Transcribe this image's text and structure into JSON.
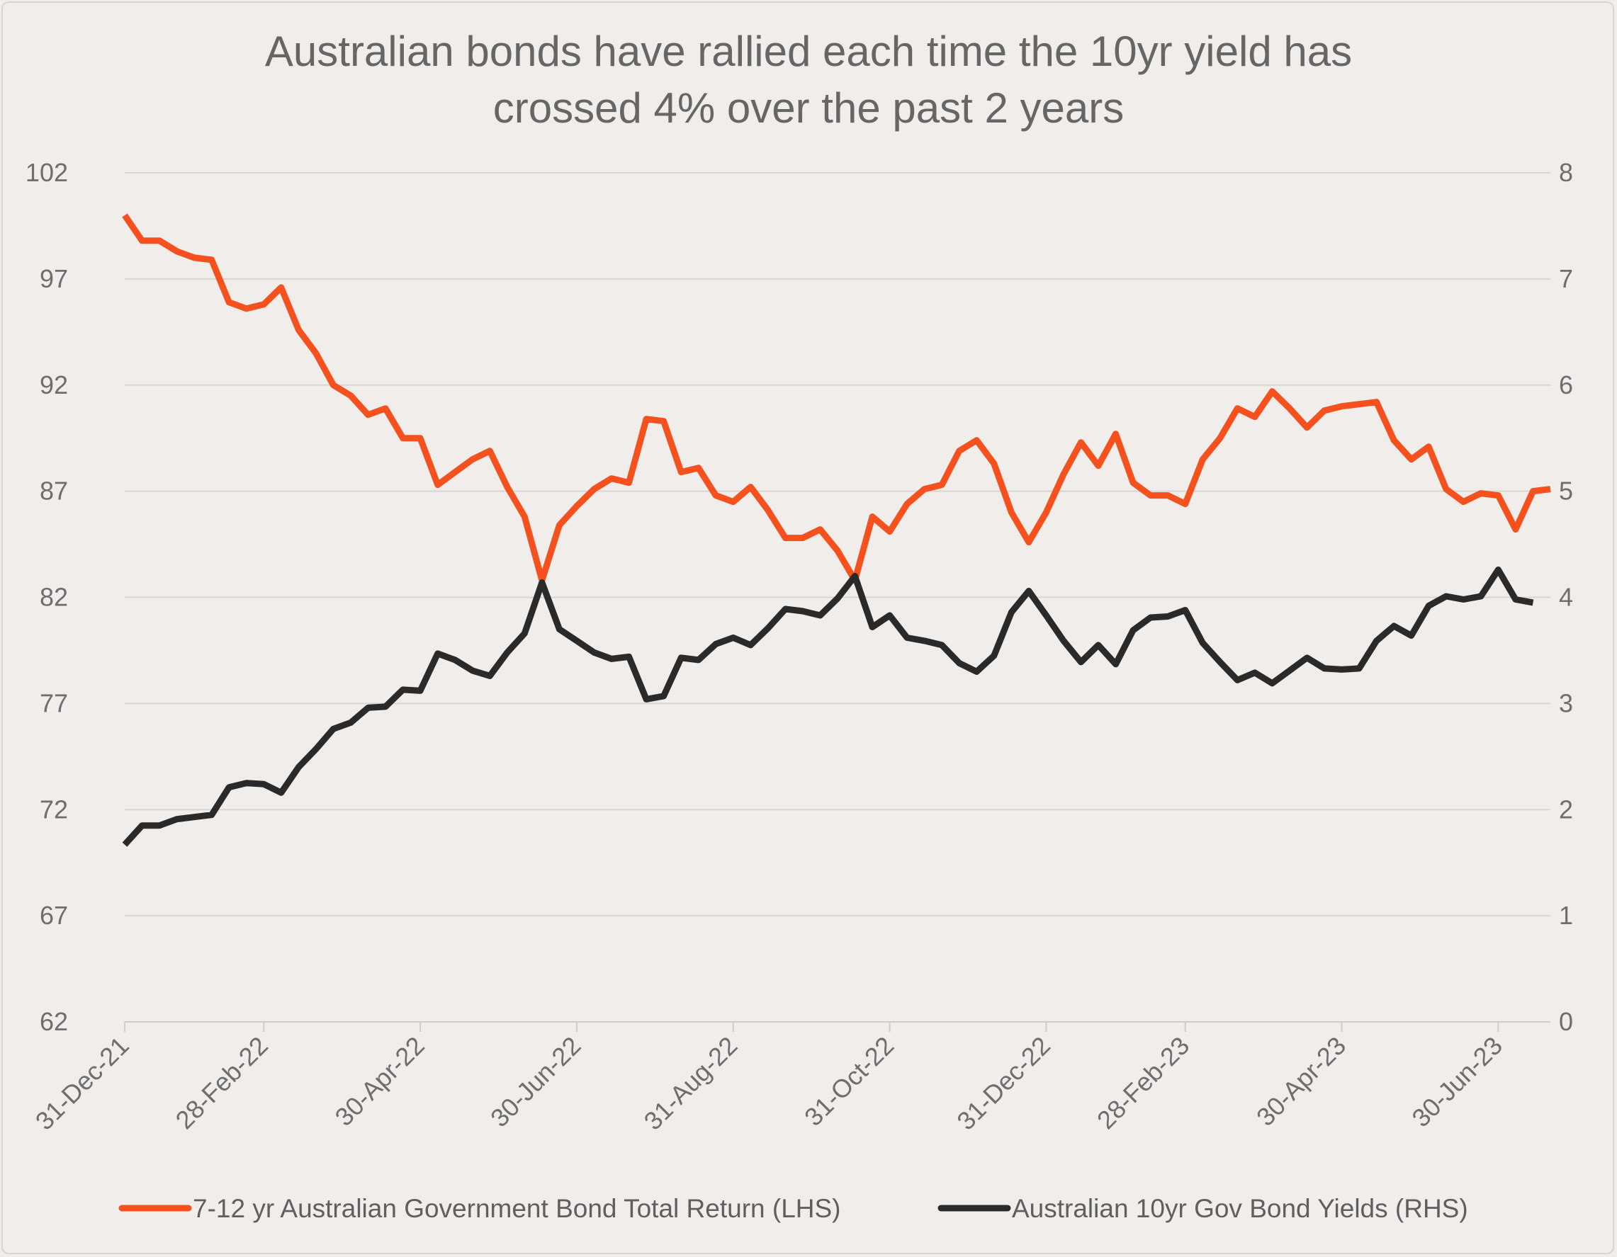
{
  "colors": {
    "background": "#f0edea",
    "bond_return": "#f4511e",
    "bond_yield": "#2a2a2a",
    "text": "#666666",
    "grid": "#d9d6d2"
  },
  "chart_data": {
    "type": "line",
    "title_lines": [
      "Australian bonds have rallied each time the 10yr yield has",
      "crossed 4% over the past 2 years"
    ],
    "x_tick_labels": [
      "31-Dec-21",
      "28-Feb-22",
      "30-Apr-22",
      "30-Jun-22",
      "31-Aug-22",
      "31-Oct-22",
      "31-Dec-22",
      "28-Feb-23",
      "30-Apr-23",
      "30-Jun-23"
    ],
    "x_tick_index": [
      0,
      8,
      17,
      26,
      35,
      44,
      53,
      61,
      70,
      79
    ],
    "y_left": {
      "min": 62,
      "max": 102,
      "ticks": [
        62,
        67,
        72,
        77,
        82,
        87,
        92,
        97,
        102
      ]
    },
    "y_right": {
      "min": 0,
      "max": 8,
      "ticks": [
        0,
        1,
        2,
        3,
        4,
        5,
        6,
        7,
        8
      ]
    },
    "grid": true,
    "legend_position": "bottom",
    "series": [
      {
        "name": "7-12 yr Australian Government Bond Total Return (LHS)",
        "axis": "left",
        "values": [
          100,
          98.8,
          98.8,
          98.3,
          98.0,
          97.9,
          95.9,
          95.6,
          95.8,
          96.6,
          94.6,
          93.5,
          92.0,
          91.5,
          90.6,
          90.9,
          89.5,
          89.5,
          87.3,
          87.9,
          88.5,
          88.9,
          87.2,
          85.8,
          82.8,
          85.4,
          86.3,
          87.1,
          87.6,
          87.4,
          90.4,
          90.3,
          87.9,
          88.1,
          86.8,
          86.5,
          87.2,
          86.1,
          84.8,
          84.8,
          85.2,
          84.2,
          82.8,
          85.8,
          85.1,
          86.4,
          87.1,
          87.3,
          88.9,
          89.4,
          88.3,
          86.0,
          84.6,
          86.0,
          87.8,
          89.3,
          88.2,
          89.7,
          87.4,
          86.8,
          86.8,
          86.4,
          88.5,
          89.5,
          90.9,
          90.5,
          91.7,
          90.9,
          90.0,
          90.8,
          91.0,
          91.1,
          91.2,
          89.4,
          88.5,
          89.1,
          87.1,
          86.5,
          86.9,
          86.8,
          85.2,
          87.0,
          87.1
        ]
      },
      {
        "name": "Australian 10yr Gov Bond Yields (RHS)",
        "axis": "right",
        "values": [
          1.67,
          1.85,
          1.85,
          1.91,
          1.93,
          1.95,
          2.21,
          2.25,
          2.24,
          2.16,
          2.4,
          2.57,
          2.76,
          2.82,
          2.96,
          2.97,
          3.13,
          3.12,
          3.47,
          3.41,
          3.31,
          3.26,
          3.48,
          3.66,
          4.14,
          3.7,
          3.59,
          3.48,
          3.42,
          3.44,
          3.04,
          3.07,
          3.43,
          3.41,
          3.56,
          3.62,
          3.55,
          3.71,
          3.89,
          3.87,
          3.83,
          3.99,
          4.2,
          3.72,
          3.83,
          3.62,
          3.59,
          3.55,
          3.38,
          3.3,
          3.45,
          3.86,
          4.06,
          3.83,
          3.59,
          3.39,
          3.55,
          3.37,
          3.69,
          3.81,
          3.82,
          3.88,
          3.57,
          3.39,
          3.22,
          3.29,
          3.19,
          3.31,
          3.43,
          3.33,
          3.32,
          3.33,
          3.59,
          3.73,
          3.64,
          3.92,
          4.01,
          3.98,
          4.01,
          4.26,
          3.98,
          3.95
        ]
      }
    ]
  }
}
